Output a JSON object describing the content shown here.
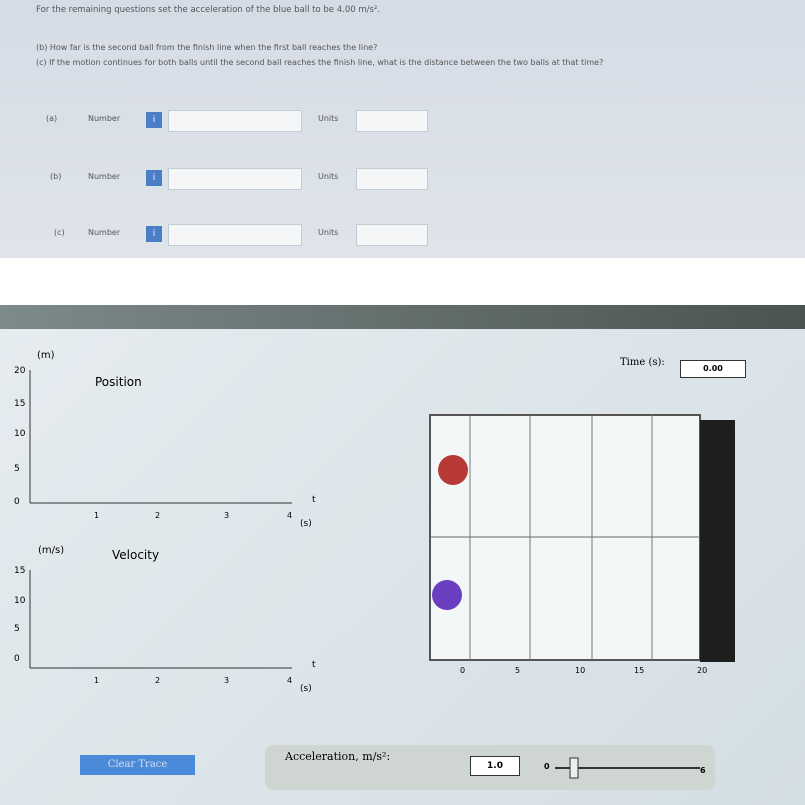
{
  "instruction": "For the remaining questions set the acceleration of the blue ball to be 4.00 m/s².",
  "questions": [
    "(b) How far is the second ball from the finish line when the first ball reaches the line?",
    "(c) If the motion continues for both balls until the second ball reaches the finish line, what is the distance between the two balls at that time?"
  ],
  "answers": [
    {
      "label": "(a)",
      "number": "Number",
      "icon": "i",
      "units": "Units"
    },
    {
      "label": "(b)",
      "number": "Number",
      "icon": "i",
      "units": "Units"
    },
    {
      "label": "(c)",
      "number": "Number",
      "icon": "i",
      "units": "Units"
    }
  ],
  "simulation": {
    "position_graph": {
      "title": "Position",
      "unit": "(m)",
      "yticks": [
        "20",
        "15",
        "10",
        "5",
        "0"
      ],
      "xticks": [
        "1",
        "2",
        "3",
        "4"
      ],
      "x_label": "t",
      "x_unit": "(s)"
    },
    "velocity_graph": {
      "title": "Velocity",
      "unit": "(m/s)",
      "yticks": [
        "15",
        "10",
        "5",
        "0"
      ],
      "xticks": [
        "1",
        "2",
        "3",
        "4"
      ],
      "x_label": "t",
      "x_unit": "(s)"
    },
    "track_scale": [
      "0",
      "5",
      "10",
      "15",
      "20"
    ],
    "time_label": "Time (s):",
    "time_value": "0.00",
    "clear_button": "Clear Trace",
    "accel_label": "Acceleration, m/s²:",
    "accel_value": "1.0",
    "slider_min": "0",
    "slider_max": "6"
  }
}
